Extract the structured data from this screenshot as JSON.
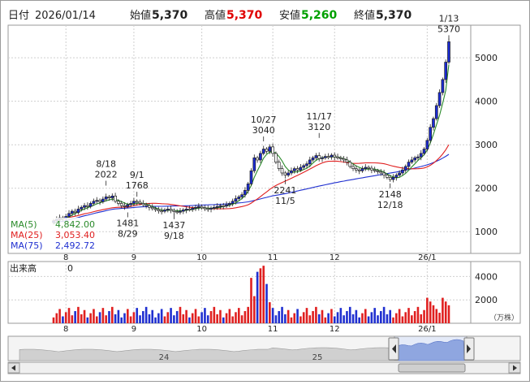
{
  "header": {
    "date_label": "日付",
    "date": "2026/01/14",
    "open_label": "始値",
    "open": "5,370",
    "high_label": "高値",
    "high": "5,370",
    "low_label": "安値",
    "low": "5,260",
    "close_label": "終値",
    "close": "5,370"
  },
  "colors": {
    "up": "#1a2bd6",
    "down": "#ffffff",
    "high_value": "#e00000",
    "low_value": "#00a000",
    "ma5": "#2a8a2a",
    "ma25": "#e02020",
    "ma75": "#2030d0",
    "volume_up": "#e02020",
    "volume_down": "#2030d0",
    "grid": "#cfcfcf"
  },
  "legend": {
    "ma5_label": "MA(5)",
    "ma5_value": "4,842.00",
    "ma25_label": "MA(25)",
    "ma25_value": "3,053.40",
    "ma75_label": "MA(75)",
    "ma75_value": "2,492.72"
  },
  "volume_panel": {
    "label": "出来高",
    "value": "0",
    "unit": "（万株）"
  },
  "navigator": {
    "year_labels": [
      "24",
      "25"
    ],
    "left_handle_icon": "triangle-left-icon",
    "right_handle_icon": "triangle-right-icon"
  },
  "chart_data": [
    {
      "type": "candlestick",
      "x_labels": [
        "8",
        "9",
        "10",
        "11",
        "12",
        "26/1"
      ],
      "y_ticks": [
        1000,
        2000,
        3000,
        4000,
        5000
      ],
      "ylim": [
        500,
        5750
      ],
      "grid": true,
      "annotations": [
        {
          "label": "8/18",
          "value": "2022",
          "kind": "high"
        },
        {
          "label": "8/29",
          "value": "1481",
          "kind": "low"
        },
        {
          "label": "9/1",
          "value": "1768",
          "kind": "high"
        },
        {
          "label": "9/18",
          "value": "1437",
          "kind": "low"
        },
        {
          "label": "10/27",
          "value": "3040",
          "kind": "high"
        },
        {
          "label": "11/5",
          "value": "2241",
          "kind": "low"
        },
        {
          "label": "11/17",
          "value": "3120",
          "kind": "high"
        },
        {
          "label": "12/18",
          "value": "2148",
          "kind": "low"
        },
        {
          "label": "1/13",
          "value": "5370",
          "kind": "high"
        }
      ],
      "closes": [
        1250,
        1290,
        1320,
        1300,
        1350,
        1420,
        1470,
        1440,
        1520,
        1560,
        1600,
        1580,
        1650,
        1700,
        1720,
        1690,
        1750,
        1800,
        1780,
        1820,
        1700,
        1650,
        1600,
        1580,
        1620,
        1650,
        1700,
        1680,
        1650,
        1620,
        1600,
        1560,
        1530,
        1510,
        1480,
        1470,
        1500,
        1520,
        1490,
        1460,
        1450,
        1470,
        1500,
        1520,
        1510,
        1540,
        1560,
        1580,
        1550,
        1530,
        1520,
        1540,
        1560,
        1580,
        1600,
        1590,
        1620,
        1650,
        1700,
        1760,
        1800,
        1850,
        1950,
        2100,
        2400,
        2700,
        2650,
        2800,
        2900,
        2850,
        2950,
        2800,
        2600,
        2450,
        2350,
        2300,
        2350,
        2400,
        2450,
        2420,
        2480,
        2520,
        2560,
        2650,
        2700,
        2750,
        2680,
        2700,
        2730,
        2720,
        2760,
        2720,
        2700,
        2680,
        2650,
        2600,
        2500,
        2450,
        2420,
        2400,
        2450,
        2480,
        2460,
        2420,
        2400,
        2380,
        2350,
        2300,
        2250,
        2200,
        2250,
        2300,
        2350,
        2420,
        2500,
        2600,
        2650,
        2700,
        2720,
        2800,
        2900,
        3100,
        3400,
        3600,
        3900,
        4200,
        4500,
        4900,
        5370
      ],
      "ma5": [
        1180,
        1220,
        1260,
        1290,
        1310,
        1340,
        1380,
        1420,
        1450,
        1490,
        1520,
        1550,
        1580,
        1610,
        1640,
        1660,
        1690,
        1710,
        1730,
        1750,
        1740,
        1720,
        1690,
        1660,
        1630,
        1630,
        1630,
        1650,
        1660,
        1650,
        1640,
        1610,
        1580,
        1550,
        1520,
        1500,
        1490,
        1490,
        1490,
        1490,
        1480,
        1480,
        1480,
        1490,
        1500,
        1510,
        1530,
        1540,
        1550,
        1550,
        1540,
        1540,
        1540,
        1550,
        1560,
        1580,
        1590,
        1610,
        1630,
        1660,
        1710,
        1760,
        1830,
        1930,
        2060,
        2250,
        2400,
        2540,
        2690,
        2780,
        2830,
        2840,
        2810,
        2730,
        2630,
        2500,
        2420,
        2370,
        2370,
        2380,
        2400,
        2430,
        2460,
        2510,
        2580,
        2640,
        2680,
        2700,
        2710,
        2720,
        2720,
        2720,
        2720,
        2700,
        2680,
        2650,
        2600,
        2560,
        2510,
        2480,
        2450,
        2440,
        2440,
        2440,
        2440,
        2420,
        2400,
        2370,
        2330,
        2290,
        2260,
        2240,
        2250,
        2290,
        2340,
        2410,
        2490,
        2560,
        2640,
        2700,
        2770,
        2880,
        3040,
        3240,
        3460,
        3680,
        3950,
        4250,
        4842
      ]
    },
    {
      "type": "bar",
      "x_labels": [
        "8",
        "9",
        "10",
        "11",
        "12",
        "26/1"
      ],
      "y_ticks": [
        2000,
        4000
      ],
      "ylim": [
        0,
        5000
      ],
      "unit": "（万株）"
    }
  ]
}
